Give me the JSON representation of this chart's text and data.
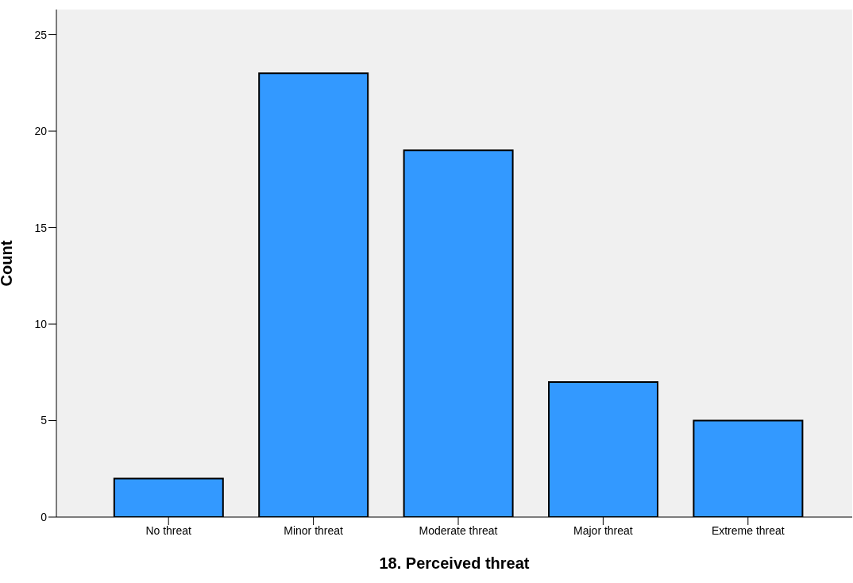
{
  "chart_data": {
    "type": "bar",
    "xlabel": "18. Perceived threat",
    "ylabel": "Count",
    "categories": [
      "No threat",
      "Minor threat",
      "Moderate threat",
      "Major threat",
      "Extreme threat"
    ],
    "values": [
      2,
      23,
      19,
      7,
      5
    ],
    "color": "#3399ff",
    "ylim": [
      0,
      26.3
    ],
    "yticks": [
      0,
      5,
      10,
      15,
      20,
      25
    ]
  }
}
